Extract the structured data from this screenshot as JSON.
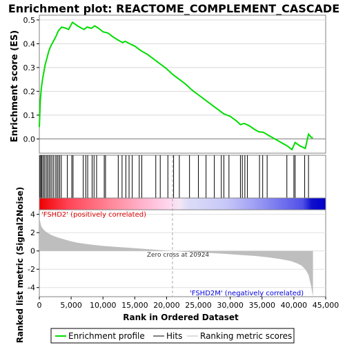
{
  "chart_data": [
    {
      "type": "line",
      "title": "Enrichment plot: REACTOME_COMPLEMENT_CASCADE",
      "ylabel": "Enrichment score (ES)",
      "ylim": [
        -0.06,
        0.52
      ],
      "yticks": [
        0.0,
        0.1,
        0.2,
        0.3,
        0.4,
        0.5
      ],
      "ytick_labels": [
        "0.0",
        "0.1",
        "0.2",
        "0.3",
        "0.4",
        "0.5"
      ],
      "xlim": [
        0,
        43000
      ],
      "series": [
        {
          "name": "Enrichment profile",
          "color": "#00dd00",
          "x": [
            0,
            150,
            300,
            500,
            700,
            900,
            1200,
            1500,
            1800,
            2200,
            2600,
            3000,
            3500,
            4200,
            4600,
            5200,
            6000,
            7000,
            7500,
            8200,
            8700,
            9300,
            10000,
            10800,
            11500,
            12400,
            13100,
            13500,
            14200,
            15000,
            16000,
            17000,
            18000,
            19000,
            20000,
            21000,
            22000,
            23000,
            24000,
            25000,
            26000,
            27000,
            28000,
            29000,
            30000,
            31000,
            31600,
            32200,
            33000,
            33800,
            34500,
            35200,
            36000,
            37000,
            38000,
            39000,
            39700,
            40200,
            41000,
            41800,
            42300,
            42800,
            43000
          ],
          "y": [
            0.05,
            0.16,
            0.21,
            0.25,
            0.28,
            0.31,
            0.34,
            0.37,
            0.39,
            0.41,
            0.43,
            0.455,
            0.47,
            0.465,
            0.46,
            0.49,
            0.475,
            0.46,
            0.47,
            0.465,
            0.475,
            0.465,
            0.45,
            0.445,
            0.43,
            0.415,
            0.405,
            0.41,
            0.4,
            0.39,
            0.37,
            0.355,
            0.335,
            0.315,
            0.295,
            0.27,
            0.25,
            0.23,
            0.205,
            0.185,
            0.165,
            0.145,
            0.125,
            0.105,
            0.095,
            0.075,
            0.06,
            0.065,
            0.055,
            0.04,
            0.03,
            0.028,
            0.015,
            0.0,
            -0.015,
            -0.03,
            -0.045,
            -0.015,
            -0.03,
            -0.04,
            0.02,
            0.005,
            0.005
          ]
        }
      ]
    },
    {
      "type": "heatmap",
      "hits_x": [
        100,
        250,
        400,
        600,
        800,
        1050,
        1250,
        1500,
        1700,
        1950,
        2200,
        2500,
        2750,
        2950,
        3200,
        3450,
        4400,
        5100,
        5300,
        6900,
        7300,
        7600,
        8300,
        8600,
        9000,
        10200,
        10400,
        12400,
        13000,
        13600,
        14100,
        14600,
        15700,
        16100,
        18300,
        19000,
        20200,
        21100,
        22000,
        23600,
        25000,
        26200,
        27500,
        28600,
        29000,
        29800,
        31600,
        31900,
        32300,
        32700,
        34600,
        35100,
        35800,
        38900,
        40000,
        40200,
        41700,
        42300
      ]
    },
    {
      "type": "area",
      "xlabel": "Rank in Ordered Dataset",
      "ylabel": "Ranked list metric (Signal2Noise)",
      "xlim": [
        0,
        45000
      ],
      "ylim": [
        -5,
        4.5
      ],
      "xticks": [
        0,
        5000,
        10000,
        15000,
        20000,
        25000,
        30000,
        35000,
        40000,
        45000
      ],
      "xtick_labels": [
        "0",
        "5,000",
        "10,000",
        "15,000",
        "20,000",
        "25,000",
        "30,000",
        "35,000",
        "40,000",
        "45,000"
      ],
      "yticks": [
        -4,
        -2,
        0,
        2,
        4
      ],
      "ytick_labels": [
        "-4",
        "-2",
        "0",
        "2",
        "4"
      ],
      "x": [
        0,
        100,
        300,
        600,
        1000,
        1500,
        2000,
        3000,
        4000,
        5000,
        6000,
        8000,
        10000,
        12000,
        14000,
        16000,
        18000,
        20924,
        23000,
        26000,
        29000,
        32000,
        34000,
        36000,
        38000,
        39500,
        40500,
        41200,
        41800,
        42300,
        42700,
        43000
      ],
      "y": [
        3.8,
        3.3,
        2.7,
        2.4,
        2.1,
        1.9,
        1.7,
        1.45,
        1.25,
        1.05,
        0.9,
        0.7,
        0.55,
        0.45,
        0.35,
        0.25,
        0.15,
        0.0,
        -0.1,
        -0.2,
        -0.3,
        -0.45,
        -0.55,
        -0.7,
        -0.9,
        -1.1,
        -1.35,
        -1.6,
        -2.0,
        -2.6,
        -3.8,
        -5.0
      ],
      "zero_cross_x": 20924,
      "annotations": {
        "pos_label": "'FSHD2' (positively correlated)",
        "neg_label": "'FSHD2M' (negatively correlated)",
        "zero_cross": "Zero cross at 20924"
      }
    }
  ],
  "legend": {
    "placement": "bottom",
    "items": [
      {
        "label": "Enrichment profile",
        "color": "#00dd00"
      },
      {
        "label": "Hits",
        "color": "#000000"
      },
      {
        "label": "Ranking metric scores",
        "color": "#bbbbbb"
      }
    ]
  },
  "colors": {
    "profile": "#00dd00",
    "metric_fill": "#bebebe",
    "positive": "#ff0000",
    "negative": "#0000ff",
    "zero_line": "#aaaaaa"
  }
}
